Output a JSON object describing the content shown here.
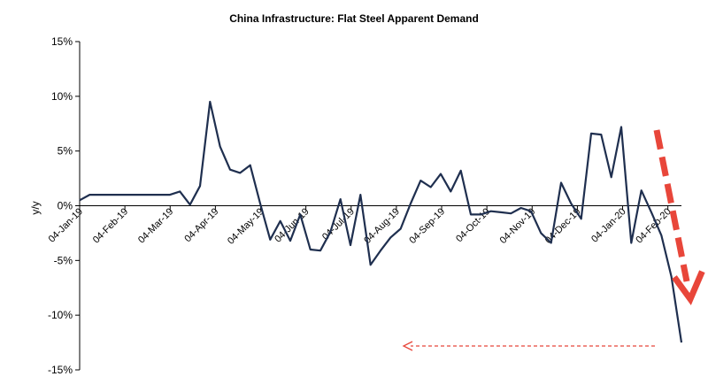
{
  "chart_data": {
    "type": "line",
    "title": "China Infrastructure: Flat Steel Apparent Demand",
    "xlabel": "",
    "ylabel": "y/y",
    "ylim": [
      -15,
      15
    ],
    "y_ticks": [
      15,
      10,
      5,
      0,
      -5,
      -10,
      -15
    ],
    "y_tick_labels": [
      "15%",
      "10%",
      "5%",
      "0%",
      "-5%",
      "-10%",
      "-15%"
    ],
    "x_tick_labels": [
      "04-Jan-19",
      "04-Feb-19",
      "04-Mar-19",
      "04-Apr-19",
      "04-May-19",
      "04-Jun-19",
      "04-Jul-19",
      "04-Aug-19",
      "04-Sep-19",
      "04-Oct-19",
      "04-Nov-19",
      "04-Dec-19",
      "04-Jan-20",
      "04-Feb-20"
    ],
    "grid": false,
    "line_color": "#1f2f4f",
    "annotation_color": "#e8463a",
    "series": [
      {
        "values": [
          0.5,
          1.0,
          1.0,
          1.0,
          1.0,
          1.0,
          1.0,
          1.0,
          1.0,
          1.0,
          1.3,
          0.1,
          1.8,
          9.5,
          5.4,
          3.3,
          3.0,
          3.7,
          0.2,
          -3.1,
          -1.4,
          -3.2,
          -0.8,
          -4.0,
          -4.1,
          -2.4,
          0.6,
          -3.6,
          1.0,
          -5.4,
          -4.1,
          -2.9,
          -2.1,
          0.2,
          2.3,
          1.7,
          2.9,
          1.3,
          3.2,
          -0.8,
          -0.8,
          -0.5,
          -0.6,
          -0.7,
          -0.2,
          -0.5,
          -2.5,
          -3.4,
          2.1,
          0.2,
          -1.2,
          6.6,
          6.5,
          2.6,
          7.2,
          -3.4,
          1.4,
          -0.6,
          -2.7,
          -6.5,
          -12.5
        ]
      }
    ]
  }
}
